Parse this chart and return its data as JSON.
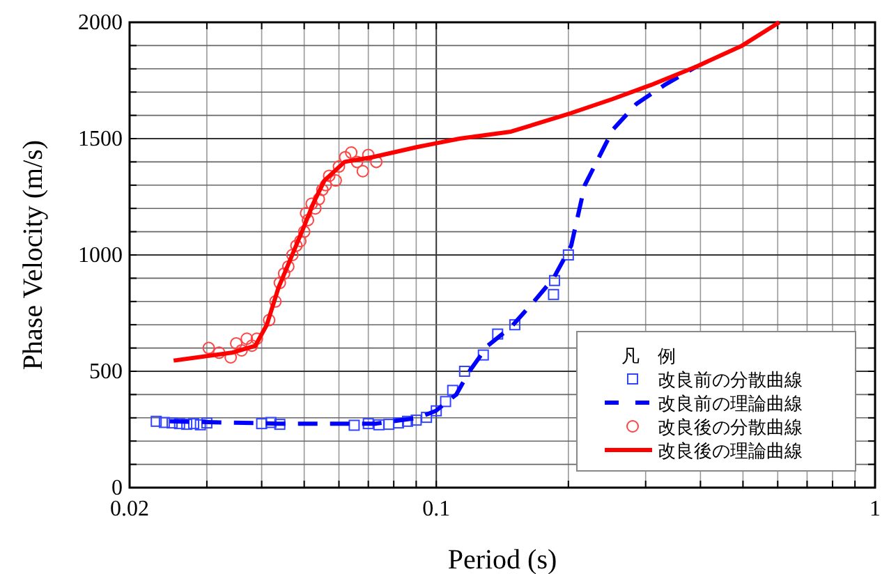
{
  "chart_data": {
    "type": "line",
    "xlabel": "Period (s)",
    "ylabel": "Phase Velocity (m/s)",
    "legend_title": "凡　例",
    "legend": "bottom right",
    "grid": true,
    "log": "x",
    "xlim": [
      0.02,
      1
    ],
    "ylim": [
      0,
      2000
    ],
    "xticks": [
      0.02,
      {
        "value": 0.03,
        "label": null
      },
      {
        "value": 0.04,
        "label": null
      },
      {
        "value": 0.05,
        "label": null
      },
      {
        "value": 0.06,
        "label": null
      },
      {
        "value": 0.07,
        "label": null
      },
      {
        "value": 0.08,
        "label": null
      },
      {
        "value": 0.09,
        "label": null
      },
      0.1,
      {
        "value": 0.2,
        "label": null
      },
      {
        "value": 0.3,
        "label": null
      },
      {
        "value": 0.4,
        "label": null
      },
      {
        "value": 0.5,
        "label": null
      },
      {
        "value": 0.6,
        "label": null
      },
      {
        "value": 0.7,
        "label": null
      },
      {
        "value": 0.8,
        "label": null
      },
      {
        "value": 0.9,
        "label": null
      },
      1
    ],
    "yticks": [
      0,
      {
        "value": 100,
        "label": null
      },
      {
        "value": 200,
        "label": null
      },
      {
        "value": 300,
        "label": null
      },
      {
        "value": 400,
        "label": null
      },
      500,
      {
        "value": 600,
        "label": null
      },
      {
        "value": 700,
        "label": null
      },
      {
        "value": 800,
        "label": null
      },
      {
        "value": 900,
        "label": null
      },
      1000,
      {
        "value": 1100,
        "label": null
      },
      {
        "value": 1200,
        "label": null
      },
      {
        "value": 1300,
        "label": null
      },
      {
        "value": 1400,
        "label": null
      },
      1500,
      {
        "value": 1600,
        "label": null
      },
      {
        "value": 1700,
        "label": null
      },
      {
        "value": 1800,
        "label": null
      },
      {
        "value": 1900,
        "label": null
      },
      2000
    ],
    "series": [
      {
        "name": "改良前の分散曲線",
        "type": "scatter",
        "marker": "square",
        "color": "#3344ff",
        "x": [
          0.023,
          0.024,
          0.025,
          0.026,
          0.027,
          0.028,
          0.029,
          0.03,
          0.04,
          0.042,
          0.044,
          0.065,
          0.07,
          0.074,
          0.078,
          0.082,
          0.086,
          0.09,
          0.095,
          0.1,
          0.105,
          0.109,
          0.116,
          0.128,
          0.138,
          0.151,
          0.185,
          0.186,
          0.2
        ],
        "values": [
          285,
          280,
          278,
          275,
          272,
          275,
          270,
          278,
          275,
          280,
          272,
          268,
          275,
          270,
          272,
          278,
          285,
          290,
          302,
          330,
          370,
          418,
          500,
          570,
          660,
          700,
          830,
          890,
          1000
        ]
      },
      {
        "name": "改良前の理論曲線",
        "type": "line",
        "line_style": "dashed",
        "color": "#0000ff",
        "x": [
          0.0247,
          0.0437,
          0.0729,
          0.0908,
          0.0998,
          0.111,
          0.119,
          0.131,
          0.148,
          0.167,
          0.185,
          0.203,
          0.218,
          0.253,
          0.286,
          0.331,
          0.392
        ],
        "values": [
          285,
          275,
          275,
          300,
          330,
          400,
          500,
          610,
          690,
          800,
          900,
          1040,
          1300,
          1540,
          1650,
          1730,
          1810
        ]
      },
      {
        "name": "改良後の分散曲線",
        "type": "scatter",
        "marker": "circle",
        "color": "#ff4444",
        "x": [
          0.0303,
          0.032,
          0.034,
          0.035,
          0.036,
          0.037,
          0.038,
          0.039,
          0.0416,
          0.043,
          0.044,
          0.045,
          0.046,
          0.047,
          0.048,
          0.049,
          0.05,
          0.0505,
          0.051,
          0.052,
          0.053,
          0.054,
          0.055,
          0.056,
          0.057,
          0.059,
          0.06,
          0.062,
          0.064,
          0.066,
          0.068,
          0.07,
          0.073
        ],
        "values": [
          600,
          580,
          560,
          620,
          590,
          640,
          610,
          640,
          720,
          800,
          880,
          920,
          950,
          1000,
          1040,
          1060,
          1100,
          1180,
          1150,
          1220,
          1200,
          1240,
          1280,
          1300,
          1340,
          1320,
          1380,
          1420,
          1440,
          1400,
          1360,
          1430,
          1400
        ]
      },
      {
        "name": "改良後の理論曲線",
        "type": "line",
        "line_style": "solid",
        "color": "#ff0000",
        "x": [
          0.0252,
          0.0342,
          0.0387,
          0.0411,
          0.0437,
          0.046,
          0.0499,
          0.0524,
          0.0556,
          0.0618,
          0.0714,
          0.0906,
          0.1,
          0.113,
          0.148,
          0.203,
          0.252,
          0.308,
          0.392,
          0.498,
          0.605
        ],
        "values": [
          546,
          580,
          610,
          700,
          860,
          960,
          1120,
          1220,
          1320,
          1400,
          1420,
          1464,
          1480,
          1500,
          1530,
          1610,
          1670,
          1730,
          1810,
          1900,
          2000
        ]
      }
    ]
  }
}
